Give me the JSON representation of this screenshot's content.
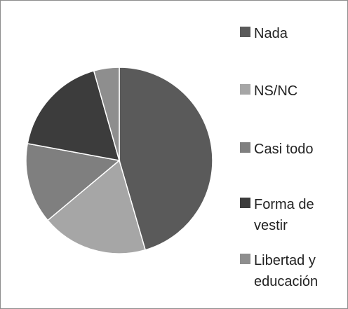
{
  "chart_data": {
    "type": "pie",
    "categories": [
      "Nada",
      "NS/NC",
      "Casi todo",
      "Forma de vestir",
      "Libertad y educación"
    ],
    "values": [
      45.5,
      18.4,
      14,
      17.7,
      4.4
    ],
    "colors": [
      "#5a5a5a",
      "#a6a6a6",
      "#7f7f7f",
      "#3c3c3c",
      "#8e8e8e"
    ],
    "legend": "right"
  }
}
